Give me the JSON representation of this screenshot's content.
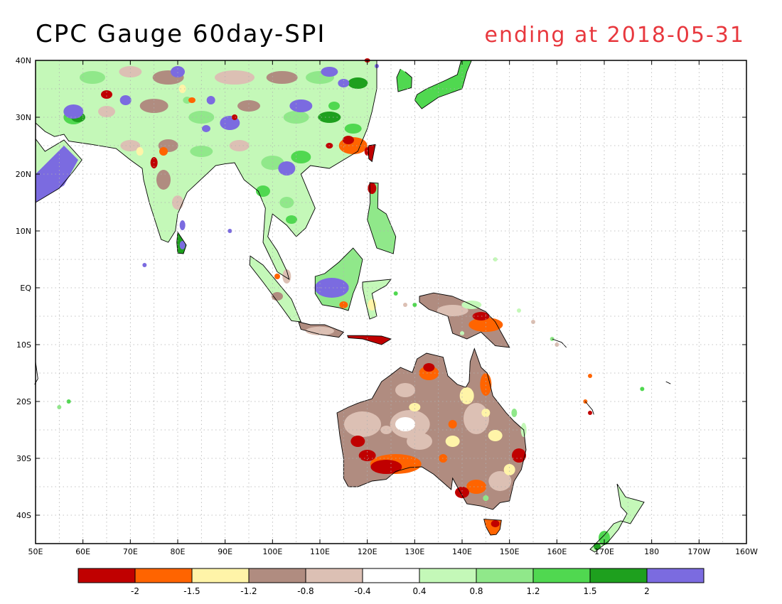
{
  "title": "CPC Gauge 60day-SPI",
  "subtitle": "ending at 2018-05-31",
  "title_color": "#e8383e",
  "map": {
    "lon_range": [
      50,
      200
    ],
    "lat_range": [
      -45,
      40
    ],
    "lat_ticks": [
      {
        "lat": 40,
        "label": "40N"
      },
      {
        "lat": 30,
        "label": "30N"
      },
      {
        "lat": 20,
        "label": "20N"
      },
      {
        "lat": 10,
        "label": "10N"
      },
      {
        "lat": 0,
        "label": "EQ"
      },
      {
        "lat": -10,
        "label": "10S"
      },
      {
        "lat": -20,
        "label": "20S"
      },
      {
        "lat": -30,
        "label": "30S"
      },
      {
        "lat": -40,
        "label": "40S"
      }
    ],
    "lon_ticks": [
      {
        "lon": 50,
        "label": "50E"
      },
      {
        "lon": 60,
        "label": "60E"
      },
      {
        "lon": 70,
        "label": "70E"
      },
      {
        "lon": 80,
        "label": "80E"
      },
      {
        "lon": 90,
        "label": "90E"
      },
      {
        "lon": 100,
        "label": "100E"
      },
      {
        "lon": 110,
        "label": "110E"
      },
      {
        "lon": 120,
        "label": "120E"
      },
      {
        "lon": 130,
        "label": "130E"
      },
      {
        "lon": 140,
        "label": "140E"
      },
      {
        "lon": 150,
        "label": "150E"
      },
      {
        "lon": 160,
        "label": "160E"
      },
      {
        "lon": 170,
        "label": "170E"
      },
      {
        "lon": 180,
        "label": "180"
      },
      {
        "lon": 190,
        "label": "170W"
      },
      {
        "lon": 200,
        "label": "160W"
      }
    ]
  },
  "colorbar": {
    "colors": [
      "#c00000",
      "#ff6400",
      "#fff4a8",
      "#b08c80",
      "#dcc0b4",
      "#ffffff",
      "#c4f8b8",
      "#90e88a",
      "#50d850",
      "#1ea01e",
      "#7b6be0"
    ],
    "labels": [
      "-2",
      "-1.5",
      "-1.2",
      "-0.8",
      "-0.4",
      "0.4",
      "0.8",
      "1.2",
      "1.5",
      "2"
    ]
  },
  "colors": {
    "frame": "#000000",
    "grid": "#b0b0b0",
    "coast": "#000000"
  }
}
